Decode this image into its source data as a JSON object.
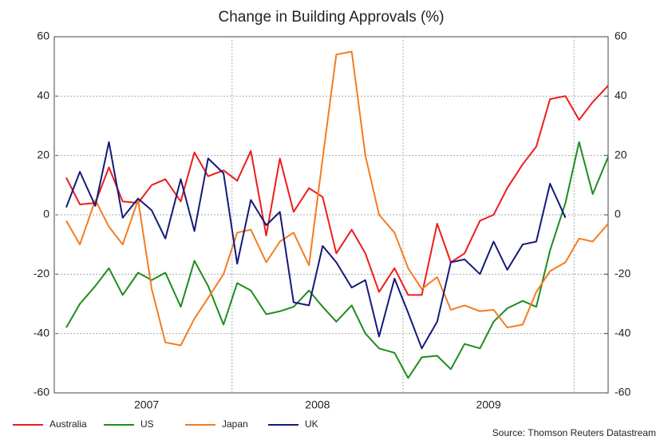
{
  "chart_data": {
    "type": "line",
    "title": "Change in Building Approvals (%)",
    "source": "Source: Thomson Reuters Datastream",
    "x": [
      2007.03,
      2007.11,
      2007.2,
      2007.28,
      2007.36,
      2007.45,
      2007.53,
      2007.61,
      2007.7,
      2007.78,
      2007.86,
      2007.95,
      2008.03,
      2008.11,
      2008.2,
      2008.28,
      2008.36,
      2008.45,
      2008.53,
      2008.61,
      2008.7,
      2008.78,
      2008.86,
      2008.95,
      2009.03,
      2009.11,
      2009.2,
      2009.28,
      2009.36,
      2009.45,
      2009.53,
      2009.61,
      2009.7,
      2009.78,
      2009.86,
      2009.95,
      2010.03,
      2010.11,
      2010.2
    ],
    "xlim": [
      2006.96,
      2010.2
    ],
    "xticks": [
      {
        "value": 2007.5,
        "label": "2007"
      },
      {
        "value": 2008.5,
        "label": "2008"
      },
      {
        "value": 2009.5,
        "label": "2009"
      }
    ],
    "xgrid": [
      2008,
      2009,
      2010
    ],
    "ylim": [
      -60,
      60
    ],
    "yticks": [
      -60,
      -40,
      -20,
      0,
      20,
      40,
      60
    ],
    "y2lim": [
      -60,
      60
    ],
    "y2ticks": [
      -60,
      -40,
      -20,
      0,
      20,
      40,
      60
    ],
    "grid": true,
    "legend": "bottom",
    "series": [
      {
        "name": "Australia",
        "color": "#ee1c1c",
        "values": [
          12.5,
          3.5,
          4,
          16,
          4.5,
          4,
          10,
          12,
          4.5,
          21,
          13,
          15,
          11.5,
          21.5,
          -7,
          19,
          1,
          9,
          6,
          -13,
          -5,
          -13,
          -26,
          -18,
          -27,
          -27,
          -3,
          -16,
          -13,
          -2,
          0,
          9,
          17,
          23,
          39,
          40,
          32,
          38,
          43.5
        ]
      },
      {
        "name": "US",
        "color": "#1e8c1e",
        "values": [
          -38,
          -30,
          -24,
          -18,
          -27,
          -19.5,
          -22,
          -19.5,
          -31,
          -15.5,
          -24,
          -37,
          -23,
          -25.5,
          -33.5,
          -32.5,
          -31,
          -25.5,
          -31,
          -36,
          -30.5,
          -40,
          -45,
          -46.5,
          -55,
          -48,
          -47.5,
          -52,
          -43.5,
          -45,
          -36,
          -31.5,
          -29,
          -31,
          -12,
          4,
          24.5,
          7,
          19.5
        ]
      },
      {
        "name": "Japan",
        "color": "#f47c20",
        "values": [
          -2,
          -10,
          5,
          -4,
          -10,
          5,
          -25,
          -43,
          -44,
          -35,
          -28,
          -20,
          -6,
          -5,
          -16,
          -9,
          -6,
          -17,
          19,
          54,
          55,
          20,
          0,
          -6,
          -18,
          -25,
          -21,
          -32,
          -30.5,
          -32.5,
          -32,
          -38,
          -37,
          -26,
          -19,
          -16,
          -8,
          -9,
          -3
        ]
      },
      {
        "name": "UK",
        "color": "#141a78",
        "values": [
          2.5,
          14.5,
          3,
          24.5,
          -1,
          5.5,
          1.5,
          -8,
          12,
          -5.5,
          19,
          14,
          -16.5,
          5,
          -3.5,
          1,
          -29.5,
          -30.5,
          -10.5,
          -16,
          -24.5,
          -22,
          -41,
          -21.5,
          -33,
          -45,
          -36,
          -16,
          -15,
          -20,
          -9,
          -18.5,
          -10,
          -9,
          10.5,
          -1,
          null,
          null,
          null
        ]
      }
    ]
  }
}
